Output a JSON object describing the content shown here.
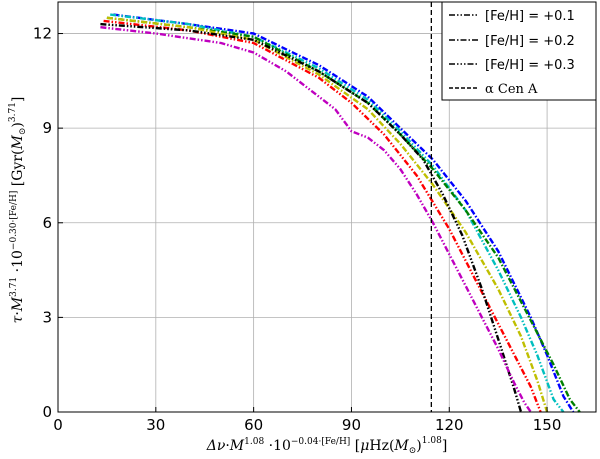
{
  "chart_data": {
    "type": "line",
    "xlabel": "Δν·M^1.08·10^(−0.04·[Fe/H]) [μHz(M⊙)^1.08]",
    "ylabel": "τ·M^3.71·10^(−0.30·[Fe/H]) [Gyr(M⊙)^3.71]",
    "xlim": [
      0,
      165
    ],
    "ylim": [
      0,
      13
    ],
    "xticks": [
      "0",
      "30",
      "60",
      "90",
      "120",
      "150"
    ],
    "yticks": [
      "0",
      "3",
      "6",
      "9",
      "12"
    ],
    "grid": true,
    "legend_position": "top-right",
    "legend": [
      {
        "label": "[Fe/H] = +0.1",
        "dash": "dash-dot-dot"
      },
      {
        "label": "[Fe/H] = +0.2",
        "dash": "dash-dot"
      },
      {
        "label": "[Fe/H] = +0.3",
        "dash": "dash-dot-dot-dot"
      },
      {
        "label": "α Cen A",
        "dash": "dashed"
      }
    ],
    "vline": {
      "x": 114.5,
      "label": "α Cen A"
    },
    "series": [
      {
        "color": "#0000ff",
        "dash": "dash-dot",
        "x": [
          17,
          40,
          60,
          80,
          95,
          105,
          115,
          125,
          135,
          145,
          150,
          155,
          158
        ],
        "y": [
          12.6,
          12.3,
          12.0,
          11.0,
          10.0,
          9.0,
          8.0,
          6.7,
          5.1,
          3.0,
          1.8,
          0.5,
          0
        ]
      },
      {
        "color": "#00bfbf",
        "dash": "dash-dot-dot",
        "x": [
          16,
          40,
          60,
          80,
          95,
          105,
          115,
          125,
          135,
          142,
          147,
          152,
          155
        ],
        "y": [
          12.6,
          12.3,
          11.9,
          10.9,
          9.9,
          8.9,
          7.8,
          6.4,
          4.5,
          3.0,
          1.8,
          0.4,
          0
        ]
      },
      {
        "color": "#008000",
        "dash": "dash-dot",
        "x": [
          15,
          40,
          60,
          80,
          95,
          105,
          115,
          125,
          135,
          145,
          152,
          157,
          160
        ],
        "y": [
          12.5,
          12.2,
          11.9,
          10.8,
          9.8,
          8.8,
          7.7,
          6.4,
          4.9,
          2.9,
          1.5,
          0.4,
          0
        ]
      },
      {
        "color": "#ff0000",
        "dash": "dash-dot-dot",
        "x": [
          14,
          40,
          60,
          80,
          90,
          100,
          110,
          120,
          130,
          140,
          145,
          148
        ],
        "y": [
          12.4,
          12.1,
          11.7,
          10.6,
          9.8,
          8.8,
          7.5,
          5.8,
          3.8,
          1.8,
          0.8,
          0
        ]
      },
      {
        "color": "#bfbf00",
        "dash": "dash-dot",
        "x": [
          15,
          40,
          60,
          80,
          95,
          105,
          115,
          125,
          135,
          142,
          147,
          150
        ],
        "y": [
          12.5,
          12.2,
          11.8,
          10.7,
          9.6,
          8.5,
          7.2,
          5.7,
          3.9,
          2.4,
          1.0,
          0
        ]
      },
      {
        "color": "#000000",
        "dash": "dash-dot-dot-dot",
        "x": [
          13,
          40,
          60,
          80,
          95,
          105,
          112,
          118,
          124,
          130,
          136,
          140,
          142
        ],
        "y": [
          12.3,
          12.1,
          11.8,
          10.8,
          9.8,
          8.8,
          8.0,
          6.9,
          5.6,
          3.9,
          2.0,
          0.7,
          0
        ]
      },
      {
        "color": "#bf00bf",
        "dash": "dash-dot-dot",
        "x": [
          13,
          30,
          50,
          60,
          70,
          80,
          85,
          90,
          95,
          100,
          105,
          110,
          115,
          120,
          125,
          130,
          135,
          140,
          143,
          145
        ],
        "y": [
          12.2,
          12.0,
          11.7,
          11.4,
          10.8,
          10.0,
          9.6,
          8.9,
          8.7,
          8.3,
          7.7,
          6.9,
          6.0,
          5.0,
          4.0,
          3.0,
          2.0,
          0.9,
          0.3,
          0
        ]
      }
    ]
  }
}
